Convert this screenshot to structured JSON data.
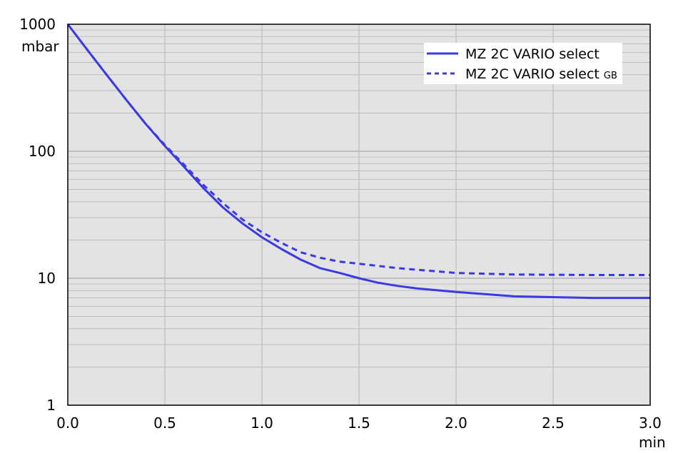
{
  "chart_data": {
    "type": "line",
    "y_scale": "log",
    "xlim": [
      0,
      3.0
    ],
    "ylim": [
      1,
      1000
    ],
    "x_ticks": [
      "0.0",
      "0.5",
      "1.0",
      "1.5",
      "2.0",
      "2.5",
      "3.0"
    ],
    "x_tick_values": [
      0,
      0.5,
      1.0,
      1.5,
      2.0,
      2.5,
      3.0
    ],
    "y_ticks": [
      "1",
      "10",
      "100",
      "1000"
    ],
    "y_tick_values": [
      1,
      10,
      100,
      1000
    ],
    "xunit": "min",
    "yunit": "mbar",
    "grid": true,
    "legend_position": "top-right",
    "colors": {
      "series": "#3a3ae6",
      "plot_bg": "#e3e3e3",
      "grid": "#b4b4b4"
    },
    "series": [
      {
        "name": "MZ 2C VARIO select",
        "style": "solid",
        "x": [
          0,
          0.1,
          0.2,
          0.3,
          0.4,
          0.5,
          0.6,
          0.7,
          0.8,
          0.9,
          1.0,
          1.1,
          1.2,
          1.3,
          1.4,
          1.5,
          1.6,
          1.7,
          1.8,
          2.0,
          2.3,
          2.7,
          3.0
        ],
        "y": [
          1000,
          630,
          400,
          255,
          165,
          110,
          75,
          51,
          36,
          27,
          21,
          17,
          14,
          12,
          11,
          10,
          9.2,
          8.7,
          8.3,
          7.8,
          7.2,
          7.0,
          7.0
        ]
      },
      {
        "name": "MZ 2C VARIO select GB",
        "style": "dashed",
        "x": [
          0,
          0.1,
          0.2,
          0.3,
          0.4,
          0.5,
          0.6,
          0.7,
          0.8,
          0.9,
          1.0,
          1.1,
          1.2,
          1.3,
          1.4,
          1.5,
          1.7,
          2.0,
          2.3,
          2.7,
          3.0
        ],
        "y": [
          1000,
          630,
          400,
          255,
          165,
          112,
          78,
          54,
          39,
          29,
          23,
          19,
          16,
          14.5,
          13.5,
          13,
          12,
          11,
          10.7,
          10.6,
          10.6
        ]
      }
    ]
  },
  "legend": {
    "series1_label": "MZ 2C VARIO select",
    "series2_label": "MZ 2C VARIO select ",
    "series2_suffix": "GB"
  }
}
